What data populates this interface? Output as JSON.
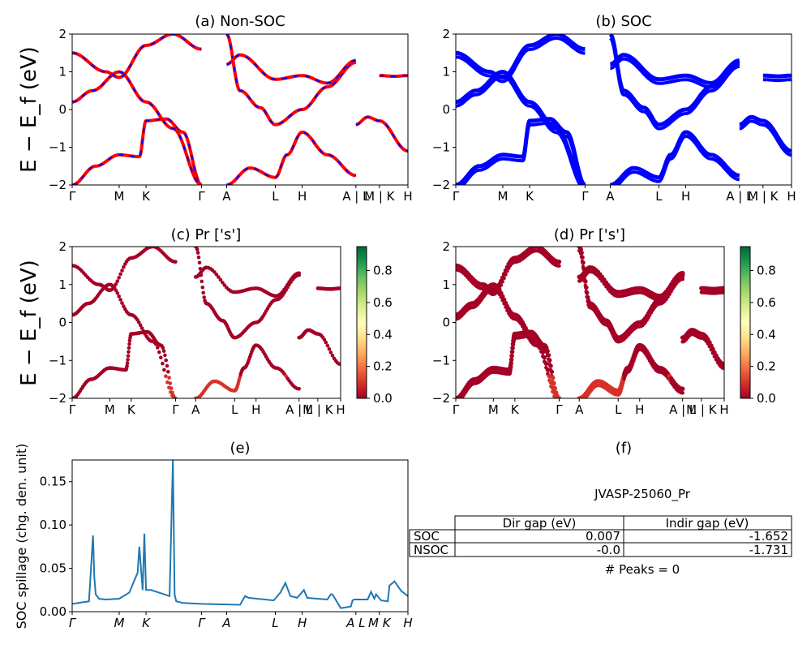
{
  "titles": {
    "a": "(a) Non-SOC",
    "b": "(b) SOC",
    "c": "(c)  Pr ['s']",
    "d": "(d) Pr ['s']",
    "e": "(e)",
    "f": "(f)"
  },
  "ylabel_band": "E − E_f (eV)",
  "ylabel_spillage": "SOC spillage (chg. den. unit)",
  "kpath_labels": [
    "Γ",
    "M",
    "K",
    "Γ",
    "A",
    "L",
    "H",
    "A | L",
    "M | K",
    "H"
  ],
  "kpath_positions": [
    0,
    0.14,
    0.22,
    0.385,
    0.46,
    0.605,
    0.685,
    0.845,
    0.915,
    1.0
  ],
  "energy_ticks": [
    "−2",
    "−1",
    "0",
    "1",
    "2"
  ],
  "colorbar_ticks": [
    "0.0",
    "0.2",
    "0.4",
    "0.6",
    "0.8"
  ],
  "spillage_yticks": [
    "0.00",
    "0.05",
    "0.10",
    "0.15"
  ],
  "colors": {
    "nonsoc_line": "#ff0000",
    "nonsoc_dash": "#0000ff",
    "soc_line": "#0000ff",
    "proj_main": "#a50026",
    "spillage_line": "#1f77b4"
  },
  "chart_data": [
    {
      "id": "a",
      "type": "line",
      "title": "(a) Non-SOC",
      "ylabel": "E − E_f (eV)",
      "ylim": [
        -2,
        2
      ],
      "xticks": [
        "Γ",
        "M",
        "K",
        "Γ",
        "A",
        "L",
        "H",
        "A | L",
        "M | K",
        "H"
      ],
      "series": [
        {
          "x": [
            0,
            0.07,
            0.14,
            0.2,
            0.22,
            0.28,
            0.33,
            0.385
          ],
          "y": [
            -2.0,
            -1.5,
            -1.2,
            -1.25,
            -0.3,
            -0.25,
            -0.6,
            -2.0
          ]
        },
        {
          "x": [
            0,
            0.06,
            0.14,
            0.22,
            0.3,
            0.385
          ],
          "y": [
            0.2,
            0.5,
            1.0,
            0.2,
            -0.5,
            -2.0
          ]
        },
        {
          "x": [
            0,
            0.1,
            0.14,
            0.22,
            0.3,
            0.385
          ],
          "y": [
            1.5,
            1.0,
            0.85,
            1.7,
            2.0,
            1.6
          ]
        },
        {
          "x": [
            0.46,
            0.53,
            0.605,
            0.64,
            0.685,
            0.76,
            0.845
          ],
          "y": [
            -2.0,
            -1.55,
            -1.8,
            -1.2,
            -0.6,
            -1.2,
            -1.75
          ]
        },
        {
          "x": [
            0.46,
            0.5,
            0.56,
            0.605,
            0.685,
            0.76,
            0.845
          ],
          "y": [
            2.0,
            0.5,
            0.05,
            -0.4,
            0.0,
            0.6,
            1.25
          ]
        },
        {
          "x": [
            0.46,
            0.5,
            0.605,
            0.685,
            0.76,
            0.845
          ],
          "y": [
            1.2,
            1.45,
            0.8,
            0.9,
            0.7,
            1.3
          ]
        },
        {
          "x": [
            0.915,
            0.96,
            1.0
          ],
          "y": [
            0.9,
            0.88,
            0.9
          ]
        },
        {
          "x": [
            0.845,
            0.88,
            0.915,
            1.0
          ],
          "y": [
            -0.4,
            -0.2,
            -0.3,
            -1.1
          ]
        }
      ]
    },
    {
      "id": "b",
      "type": "line",
      "title": "(b) SOC",
      "ylabel": "",
      "ylim": [
        -2,
        2
      ],
      "xticks": [
        "Γ",
        "M",
        "K",
        "Γ",
        "A",
        "L",
        "H",
        "A | L",
        "M | K",
        "H"
      ],
      "series": [
        {
          "x": [
            0,
            0.07,
            0.14,
            0.2,
            0.22,
            0.28,
            0.33,
            0.385
          ],
          "y": [
            -2.0,
            -1.5,
            -1.2,
            -1.25,
            -0.3,
            -0.25,
            -0.6,
            -2.0
          ]
        },
        {
          "x": [
            0,
            0.06,
            0.14,
            0.22,
            0.3,
            0.385
          ],
          "y": [
            0.2,
            0.5,
            1.0,
            0.2,
            -0.5,
            -2.0
          ]
        },
        {
          "x": [
            0,
            0.1,
            0.14,
            0.22,
            0.3,
            0.385
          ],
          "y": [
            1.5,
            1.0,
            0.85,
            1.7,
            2.0,
            1.6
          ]
        },
        {
          "x": [
            0.46,
            0.53,
            0.605,
            0.64,
            0.685,
            0.76,
            0.845
          ],
          "y": [
            -2.0,
            -1.55,
            -1.8,
            -1.2,
            -0.6,
            -1.2,
            -1.75
          ]
        },
        {
          "x": [
            0.46,
            0.5,
            0.56,
            0.605,
            0.685,
            0.76,
            0.845
          ],
          "y": [
            2.0,
            0.5,
            0.05,
            -0.4,
            0.0,
            0.6,
            1.25
          ]
        },
        {
          "x": [
            0.46,
            0.5,
            0.605,
            0.685,
            0.76,
            0.845
          ],
          "y": [
            1.2,
            1.45,
            0.8,
            0.9,
            0.7,
            1.3
          ]
        },
        {
          "x": [
            0.915,
            0.96,
            1.0
          ],
          "y": [
            0.9,
            0.88,
            0.9
          ]
        },
        {
          "x": [
            0.845,
            0.88,
            0.915,
            1.0
          ],
          "y": [
            -0.4,
            -0.2,
            -0.3,
            -1.1
          ]
        }
      ]
    },
    {
      "id": "c",
      "type": "scatter",
      "title": "(c)  Pr ['s']",
      "ylabel": "E − E_f (eV)",
      "ylim": [
        -2,
        2
      ],
      "colorbar_range": [
        0.0,
        0.95
      ],
      "xticks": [
        "Γ",
        "M",
        "K",
        "Γ",
        "A",
        "L",
        "H",
        "A | L",
        "M | K",
        "H"
      ],
      "bands": [
        {
          "x": [
            0,
            0.07,
            0.14,
            0.2,
            0.22,
            0.28,
            0.33,
            0.385
          ],
          "y": [
            -2.0,
            -1.5,
            -1.2,
            -1.25,
            -0.3,
            -0.25,
            -0.6,
            -2.0
          ]
        },
        {
          "x": [
            0,
            0.06,
            0.14,
            0.22,
            0.3,
            0.385
          ],
          "y": [
            0.2,
            0.5,
            1.0,
            0.2,
            -0.5,
            -2.0
          ]
        },
        {
          "x": [
            0,
            0.1,
            0.14,
            0.22,
            0.3,
            0.385
          ],
          "y": [
            1.5,
            1.0,
            0.85,
            1.7,
            2.0,
            1.6
          ]
        },
        {
          "x": [
            0.46,
            0.53,
            0.605,
            0.64,
            0.685,
            0.76,
            0.845
          ],
          "y": [
            -2.0,
            -1.55,
            -1.8,
            -1.2,
            -0.6,
            -1.2,
            -1.75
          ]
        },
        {
          "x": [
            0.46,
            0.5,
            0.56,
            0.605,
            0.685,
            0.76,
            0.845
          ],
          "y": [
            2.0,
            0.5,
            0.05,
            -0.4,
            0.0,
            0.6,
            1.25
          ]
        },
        {
          "x": [
            0.46,
            0.5,
            0.605,
            0.685,
            0.76,
            0.845
          ],
          "y": [
            1.2,
            1.45,
            0.8,
            0.9,
            0.7,
            1.3
          ]
        },
        {
          "x": [
            0.915,
            0.96,
            1.0
          ],
          "y": [
            0.9,
            0.88,
            0.9
          ]
        },
        {
          "x": [
            0.845,
            0.88,
            0.915,
            1.0
          ],
          "y": [
            -0.4,
            -0.2,
            -0.3,
            -1.1
          ]
        }
      ]
    },
    {
      "id": "d",
      "type": "scatter",
      "title": "(d) Pr ['s']",
      "ylabel": "",
      "ylim": [
        -2,
        2
      ],
      "colorbar_range": [
        0.0,
        0.95
      ],
      "xticks": [
        "Γ",
        "M",
        "K",
        "Γ",
        "A",
        "L",
        "H",
        "A | L",
        "M | K",
        "H"
      ],
      "bands": [
        {
          "x": [
            0,
            0.07,
            0.14,
            0.2,
            0.22,
            0.28,
            0.33,
            0.385
          ],
          "y": [
            -2.0,
            -1.5,
            -1.2,
            -1.25,
            -0.3,
            -0.25,
            -0.6,
            -2.0
          ]
        },
        {
          "x": [
            0,
            0.06,
            0.14,
            0.22,
            0.3,
            0.385
          ],
          "y": [
            0.2,
            0.5,
            1.0,
            0.2,
            -0.5,
            -2.0
          ]
        },
        {
          "x": [
            0,
            0.1,
            0.14,
            0.22,
            0.3,
            0.385
          ],
          "y": [
            1.5,
            1.0,
            0.85,
            1.7,
            2.0,
            1.6
          ]
        },
        {
          "x": [
            0.46,
            0.53,
            0.605,
            0.64,
            0.685,
            0.76,
            0.845
          ],
          "y": [
            -2.0,
            -1.55,
            -1.8,
            -1.2,
            -0.6,
            -1.2,
            -1.75
          ]
        },
        {
          "x": [
            0.46,
            0.5,
            0.56,
            0.605,
            0.685,
            0.76,
            0.845
          ],
          "y": [
            2.0,
            0.5,
            0.05,
            -0.4,
            0.0,
            0.6,
            1.25
          ]
        },
        {
          "x": [
            0.46,
            0.5,
            0.605,
            0.685,
            0.76,
            0.845
          ],
          "y": [
            1.2,
            1.45,
            0.8,
            0.9,
            0.7,
            1.3
          ]
        },
        {
          "x": [
            0.915,
            0.96,
            1.0
          ],
          "y": [
            0.9,
            0.88,
            0.9
          ]
        },
        {
          "x": [
            0.845,
            0.88,
            0.915,
            1.0
          ],
          "y": [
            -0.4,
            -0.2,
            -0.3,
            -1.1
          ]
        }
      ]
    },
    {
      "id": "e",
      "type": "line",
      "title": "(e)",
      "ylabel": "SOC spillage (chg. den. unit)",
      "ylim": [
        0,
        0.175
      ],
      "xticks": [
        "Γ",
        "M",
        "K",
        "Γ",
        "A",
        "L",
        "H",
        "A L",
        "M K",
        "H"
      ],
      "series": [
        {
          "name": "",
          "x": [
            0,
            0.05,
            0.062,
            0.066,
            0.07,
            0.08,
            0.1,
            0.14,
            0.17,
            0.195,
            0.2,
            0.21,
            0.215,
            0.22,
            0.235,
            0.29,
            0.3,
            0.305,
            0.31,
            0.33,
            0.385,
            0.5,
            0.515,
            0.525,
            0.6,
            0.62,
            0.635,
            0.65,
            0.67,
            0.69,
            0.7,
            0.73,
            0.76,
            0.77,
            0.775,
            0.8,
            0.83,
            0.835,
            0.84,
            0.88,
            0.89,
            0.9,
            0.905,
            0.92,
            0.94,
            0.945,
            0.96,
            0.98,
            1.0
          ],
          "y": [
            0.009,
            0.012,
            0.088,
            0.04,
            0.02,
            0.015,
            0.014,
            0.015,
            0.022,
            0.045,
            0.075,
            0.025,
            0.09,
            0.025,
            0.025,
            0.018,
            0.175,
            0.02,
            0.012,
            0.01,
            0.009,
            0.008,
            0.018,
            0.016,
            0.013,
            0.022,
            0.033,
            0.018,
            0.016,
            0.025,
            0.016,
            0.015,
            0.014,
            0.02,
            0.02,
            0.004,
            0.006,
            0.013,
            0.014,
            0.014,
            0.023,
            0.015,
            0.02,
            0.013,
            0.012,
            0.03,
            0.035,
            0.024,
            0.018
          ]
        }
      ]
    }
  ],
  "table": {
    "subtitle": "JVASP-25060_Pr",
    "columns": [
      "Dir gap (eV)",
      "Indir gap (eV)"
    ],
    "rows": [
      {
        "label": "SOC",
        "dir": "0.007",
        "indir": "-1.652"
      },
      {
        "label": "NSOC",
        "dir": "-0.0",
        "indir": "-1.731"
      }
    ],
    "footer": "# Peaks = 0"
  }
}
